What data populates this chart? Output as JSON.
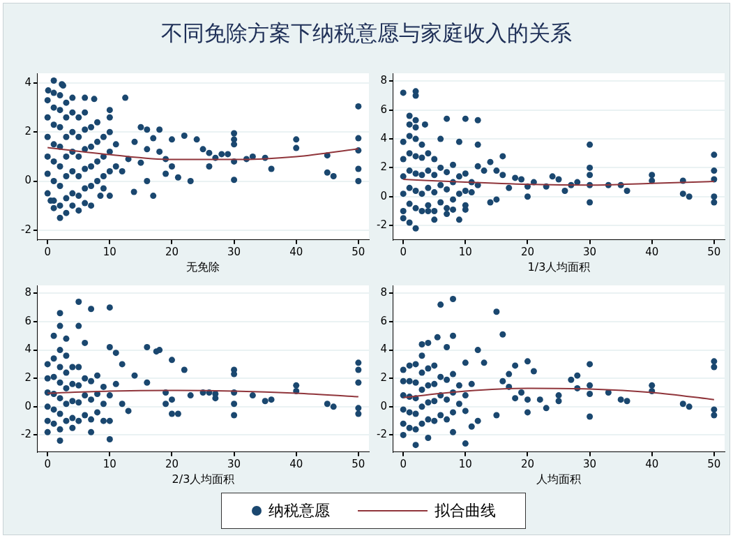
{
  "chart_data": [
    {
      "type": "scatter",
      "title": "不同免除方案下纳税意愿与家庭收入的关系",
      "xlabel": "无免除",
      "xlim": [
        -1.6,
        51.7
      ],
      "ylim": [
        -2.4,
        4.4
      ],
      "xticks": [
        0,
        10,
        20,
        30,
        40,
        50
      ],
      "yticks": [
        -2,
        0,
        2,
        4
      ],
      "grid": "y",
      "legend": "bottom",
      "series": [
        {
          "name": "纳税意愿",
          "color": "#1a476f",
          "marker": "circle",
          "x": [
            1,
            2.3,
            2.5,
            0.1,
            12.5,
            50,
            7.5,
            4,
            6,
            10,
            10,
            15,
            16,
            18,
            20,
            22,
            24,
            30,
            30,
            30,
            40,
            40,
            50,
            50,
            50,
            50,
            45,
            45,
            46,
            36,
            35,
            33,
            32,
            27,
            28,
            29,
            26,
            25,
            26,
            30,
            30,
            23,
            21,
            20,
            19,
            19,
            18,
            17,
            16,
            15,
            13,
            14,
            12,
            10,
            9,
            8.5,
            6,
            4,
            2,
            3,
            0.5,
            1,
            5,
            7,
            13.9,
            16,
            17,
            0,
            0,
            0,
            0,
            0,
            0,
            1,
            1,
            1,
            1,
            1,
            1,
            1,
            2,
            2,
            2,
            2,
            2,
            2,
            2,
            3,
            3,
            3,
            3,
            3,
            3,
            4,
            4,
            4,
            4,
            4,
            5,
            5,
            5,
            5,
            5,
            6,
            6,
            6,
            6,
            6,
            7,
            7,
            7,
            7,
            8,
            8,
            8,
            8,
            9,
            9,
            9,
            10,
            10,
            10,
            11,
            11
          ],
          "values": [
            4.1,
            3.95,
            3.9,
            3.7,
            3.4,
            3.05,
            3.35,
            3.4,
            3.4,
            2.9,
            2.6,
            2.2,
            2.1,
            2.1,
            1.7,
            1.85,
            1.7,
            1.95,
            1.7,
            1.5,
            1.7,
            1.35,
            1.75,
            1.25,
            0.5,
            0,
            1.05,
            0.35,
            0.2,
            0.5,
            0.95,
            1,
            0.9,
            0.95,
            1.1,
            1.1,
            1.15,
            1.3,
            0.6,
            0.8,
            0.05,
            0,
            0.15,
            0.6,
            0.9,
            0.3,
            1.2,
            1.75,
            1.3,
            0.75,
            0.9,
            1.6,
            0.4,
            -0.6,
            -0.3,
            -0.6,
            -0.9,
            -1,
            -1.5,
            -1.3,
            -0.8,
            -1.1,
            -1.2,
            -1,
            -0.44,
            0,
            -0.6,
            -0.5,
            0.3,
            1,
            1.8,
            2.6,
            3.3,
            -0.8,
            0,
            0.8,
            1.5,
            2.3,
            3,
            3.6,
            -1,
            -0.2,
            0.6,
            1.4,
            2.2,
            2.9,
            3.5,
            -0.7,
            0.2,
            1,
            1.8,
            2.6,
            3.2,
            -0.5,
            0.4,
            1.2,
            2,
            2.8,
            -0.6,
            0.2,
            1,
            1.8,
            2.6,
            -0.3,
            0.5,
            1.3,
            2.1,
            2.8,
            -0.2,
            0.6,
            1.4,
            2.2,
            0,
            0.8,
            1.6,
            2.4,
            0.2,
            1,
            1.8,
            0.4,
            1.2,
            2,
            0.6,
            1.5
          ]
        },
        {
          "name": "拟合曲线",
          "type": "line",
          "color": "#90353b",
          "line_style": "solid",
          "x": [
            0,
            10,
            20,
            30,
            40,
            50
          ],
          "values": [
            1.37,
            1.08,
            0.88,
            0.88,
            1.0,
            1.32
          ]
        }
      ]
    },
    {
      "type": "scatter",
      "xlabel": "1/3人均面积",
      "xlim": [
        -1.6,
        51.7
      ],
      "ylim": [
        -3.0,
        8.55
      ],
      "xticks": [
        0,
        10,
        20,
        30,
        40,
        50
      ],
      "yticks": [
        -2,
        0,
        2,
        4,
        6,
        8
      ],
      "grid": "y",
      "series": [
        {
          "color": "#1a476f",
          "marker": "circle",
          "x": [
            0,
            2,
            2,
            1,
            2,
            3.5,
            7,
            10,
            12,
            12,
            6,
            9,
            30,
            50,
            50,
            50,
            50,
            50,
            45,
            45,
            46,
            40,
            40,
            36,
            35,
            33,
            30,
            30,
            30,
            30,
            28,
            27,
            26,
            25,
            24,
            23,
            21,
            20,
            20,
            19,
            18,
            16,
            16,
            15,
            14,
            13,
            12,
            10,
            10,
            7,
            5,
            2,
            0,
            1,
            4,
            8,
            9,
            14,
            15,
            17,
            11,
            12,
            0,
            0,
            0,
            0,
            0,
            1,
            1,
            1,
            1,
            1,
            1,
            2,
            2,
            2,
            2,
            2,
            2,
            3,
            3,
            3,
            3,
            3,
            4,
            4,
            4,
            4,
            5,
            5,
            5,
            5,
            6,
            6,
            6,
            7,
            7,
            7,
            8,
            8,
            8,
            9,
            9,
            10,
            10,
            11
          ],
          "values": [
            7.2,
            7.3,
            7,
            5.6,
            5.3,
            5,
            5.4,
            5.4,
            5.3,
            3.6,
            4,
            3.8,
            3.6,
            2.9,
            1.8,
            1.2,
            0,
            -0.4,
            1.1,
            0.2,
            0,
            1.5,
            1.1,
            0.4,
            0.8,
            0.8,
            2,
            1.5,
            0.8,
            -0.4,
            1,
            0.8,
            0.4,
            1.2,
            1.4,
            0.7,
            1,
            0.7,
            0,
            1.2,
            1.3,
            1.5,
            2.8,
            1.8,
            2.4,
            1.8,
            2.1,
            -0.6,
            -0.9,
            -1.2,
            -1.6,
            -2.2,
            -1.5,
            -1.8,
            -1,
            -0.9,
            -1.6,
            -0.4,
            -0.2,
            0.6,
            0.3,
            0.8,
            -1,
            0.2,
            1.4,
            2.6,
            3.8,
            -0.5,
            0.6,
            1.8,
            3,
            4.2,
            5,
            -0.8,
            0.4,
            1.6,
            2.8,
            4,
            4.8,
            -1,
            0.2,
            1.5,
            2.7,
            3.6,
            -0.6,
            0.6,
            1.8,
            3,
            -1,
            0.3,
            1.5,
            2.6,
            -0.4,
            0.8,
            2,
            -0.8,
            0.5,
            1.7,
            -0.2,
            1,
            2.2,
            0.2,
            1.4,
            0.4,
            1.6,
            1
          ]
        },
        {
          "type": "line",
          "color": "#90353b",
          "line_style": "solid",
          "x": [
            0,
            10,
            20,
            30,
            40,
            50
          ],
          "values": [
            1.2,
            1.0,
            0.85,
            0.8,
            0.92,
            1.05
          ]
        }
      ]
    },
    {
      "type": "scatter",
      "xlabel": "2/3人均面积",
      "xlim": [
        -1.6,
        51.7
      ],
      "ylim": [
        -3.2,
        8.56
      ],
      "xticks": [
        0,
        10,
        20,
        30,
        40,
        50
      ],
      "yticks": [
        -2,
        0,
        2,
        4,
        6,
        8
      ],
      "grid": "y",
      "series": [
        {
          "color": "#1a476f",
          "marker": "circle",
          "x": [
            5,
            2,
            7,
            10,
            2,
            5,
            1,
            3,
            6,
            10,
            16,
            17.5,
            18,
            20,
            22,
            11,
            12,
            14,
            16,
            12,
            13,
            30,
            30,
            30,
            30,
            30,
            50,
            50,
            50,
            50,
            50,
            45,
            46,
            40,
            40,
            36,
            35,
            33,
            27,
            27,
            25,
            26,
            23,
            20,
            19,
            19,
            21,
            20,
            10,
            2,
            0,
            4,
            7,
            9,
            10,
            0,
            0,
            0,
            0,
            0,
            1,
            1,
            1,
            1,
            1,
            2,
            2,
            2,
            2,
            2,
            2,
            3,
            3,
            3,
            3,
            3,
            4,
            4,
            4,
            4,
            5,
            5,
            5,
            5,
            6,
            6,
            6,
            7,
            7,
            7,
            8,
            8,
            8,
            9,
            9,
            10,
            11
          ],
          "values": [
            7.4,
            6.6,
            6.9,
            7,
            5.7,
            5.7,
            5,
            4.8,
            4.5,
            4.2,
            4.2,
            3.9,
            4,
            3.3,
            2.6,
            3.8,
            3,
            2.2,
            1.7,
            0.2,
            -0.3,
            2.6,
            2.3,
            1,
            0.2,
            -0.6,
            3.1,
            2.6,
            1.7,
            -0.1,
            -0.5,
            0.2,
            0,
            1.5,
            1.1,
            0.5,
            0.4,
            0.8,
            0.6,
            0.9,
            1,
            1,
            0.8,
            0.5,
            1,
            0.2,
            -0.5,
            -0.5,
            -2.3,
            -2.4,
            -1.8,
            -1.5,
            -1.8,
            -1,
            -1,
            -1,
            0,
            1,
            2,
            3,
            -1.2,
            -0.2,
            0.9,
            2.1,
            3.4,
            -1.6,
            -0.5,
            0.6,
            1.7,
            2.8,
            4,
            -1,
            0.2,
            1.3,
            2.4,
            3.6,
            -0.8,
            0.4,
            1.6,
            2.8,
            -1,
            0.3,
            1.5,
            2.8,
            -0.6,
            0.8,
            2,
            -0.9,
            0.5,
            1.8,
            -0.4,
            0.9,
            2.2,
            0.2,
            1.4,
            0.8,
            1.6
          ]
        },
        {
          "type": "line",
          "color": "#90353b",
          "line_style": "solid",
          "x": [
            0,
            10,
            20,
            30,
            40,
            50
          ],
          "values": [
            0.95,
            1.1,
            1.15,
            1.1,
            0.95,
            0.7
          ]
        }
      ]
    },
    {
      "type": "scatter",
      "xlabel": "人均面积",
      "xlim": [
        -1.6,
        51.7
      ],
      "ylim": [
        -3.2,
        8.56
      ],
      "xticks": [
        0,
        10,
        20,
        30,
        40,
        50
      ],
      "yticks": [
        -2,
        0,
        2,
        4,
        6,
        8
      ],
      "grid": "y",
      "series": [
        {
          "color": "#1a476f",
          "marker": "circle",
          "x": [
            6,
            8,
            15,
            16,
            3,
            4,
            5.5,
            8,
            7,
            10,
            12,
            13,
            17,
            18,
            20,
            21,
            28,
            30,
            30,
            30,
            30,
            28,
            27,
            25,
            25,
            23,
            22,
            20,
            19,
            18,
            17,
            16,
            50,
            50,
            50,
            50,
            45,
            46,
            40,
            40,
            36,
            35,
            33,
            20,
            10,
            12,
            15,
            10,
            2,
            0,
            4,
            8,
            11,
            0,
            0,
            0,
            0,
            0,
            1,
            1,
            1,
            1,
            1,
            2,
            2,
            2,
            2,
            2,
            3,
            3,
            3,
            3,
            3,
            4,
            4,
            4,
            4,
            5,
            5,
            5,
            5,
            6,
            6,
            6,
            7,
            7,
            7,
            8,
            8,
            8,
            9,
            9,
            10,
            11
          ],
          "values": [
            7.2,
            7.6,
            6.7,
            5.1,
            4.4,
            4.5,
            4.9,
            5,
            4.2,
            3.1,
            4,
            3.1,
            2.3,
            2.9,
            3.2,
            2.5,
            2.2,
            3,
            1.5,
            0.9,
            -0.7,
            1.3,
            1.9,
            0.4,
            0.8,
            -0.1,
            0.5,
            0.5,
            1,
            0.6,
            1.4,
            1.8,
            3.2,
            2.8,
            -0.2,
            -0.6,
            0.2,
            0,
            1.5,
            1.1,
            0.4,
            0.5,
            1,
            -0.4,
            -0.3,
            -1,
            -0.6,
            -2.6,
            -2.7,
            -2,
            -2.2,
            -1.8,
            -1.4,
            -1.2,
            -0.2,
            0.8,
            1.8,
            2.6,
            -1.5,
            -0.4,
            0.7,
            1.8,
            2.9,
            -1.6,
            -0.5,
            0.6,
            1.7,
            3,
            -1.2,
            0,
            1.2,
            2.4,
            3.6,
            -0.9,
            0.3,
            1.5,
            2.7,
            -1,
            0.4,
            1.6,
            2.9,
            -0.6,
            0.8,
            2.1,
            -0.9,
            0.5,
            1.9,
            -0.4,
            1,
            2.3,
            0.2,
            1.5,
            0.8,
            1.6
          ]
        },
        {
          "type": "line",
          "color": "#90353b",
          "line_style": "solid",
          "x": [
            0,
            10,
            20,
            30,
            40,
            50
          ],
          "values": [
            0.65,
            1.1,
            1.3,
            1.25,
            1.0,
            0.5
          ]
        }
      ]
    }
  ]
}
